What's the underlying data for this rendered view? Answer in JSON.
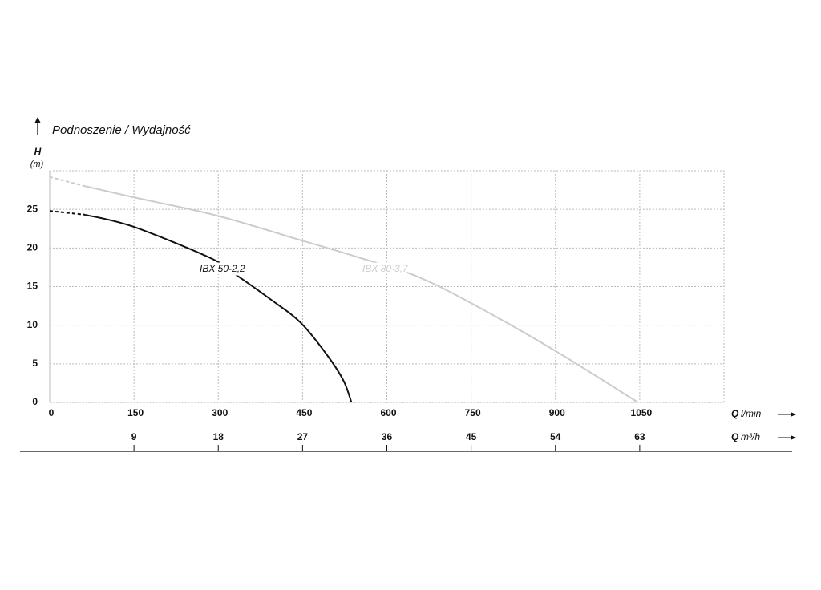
{
  "chart_data": {
    "type": "line",
    "title": "Podnoszenie / Wydajność",
    "ylabel": "H",
    "ylabel_unit": "(m)",
    "xlabel_symbol": "Q",
    "xlabel_unit": "l/min",
    "x2label_symbol": "Q",
    "x2label_unit": "m³/h",
    "xlim": [
      0,
      1200
    ],
    "xticks": [
      0,
      150,
      300,
      450,
      600,
      750,
      900,
      1050
    ],
    "x2lim": [
      0,
      72
    ],
    "x2ticks": [
      9,
      18,
      27,
      36,
      45,
      54,
      63
    ],
    "ylim": [
      0,
      30
    ],
    "yticks": [
      0,
      5,
      10,
      15,
      20,
      25
    ],
    "grid": true,
    "series": [
      {
        "name": "IBX 50-2,2",
        "color": "#111111",
        "x": [
          0,
          63,
          147,
          283,
          326,
          394,
          447,
          494,
          523,
          537
        ],
        "values": [
          24.8,
          24.3,
          22.8,
          18.8,
          16.8,
          13.3,
          10.3,
          6.1,
          2.8,
          0
        ]
      },
      {
        "name": "IBX 80-3,7",
        "color": "#cccccc",
        "x": [
          0,
          63,
          147,
          297,
          447,
          551,
          651,
          749,
          897,
          1047
        ],
        "values": [
          29.2,
          28.0,
          26.6,
          24.2,
          21.0,
          18.75,
          16.4,
          12.9,
          6.8,
          0
        ]
      }
    ]
  }
}
